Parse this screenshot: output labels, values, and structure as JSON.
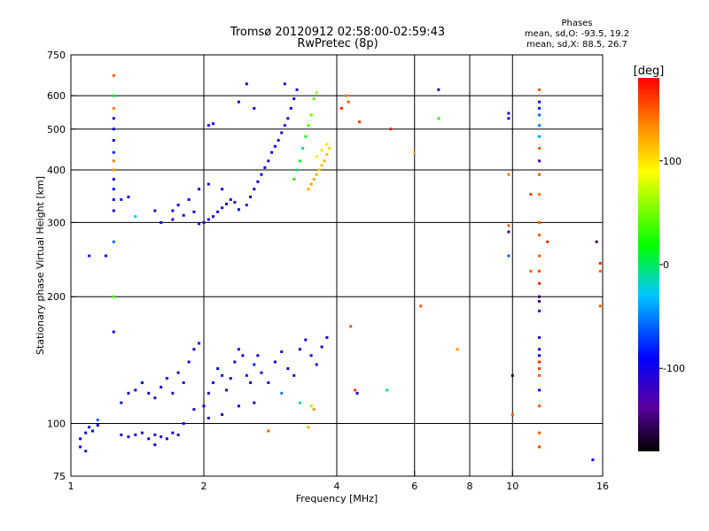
{
  "chart_data": {
    "type": "scatter",
    "title": "Tromsø 20120912 02:58:00-02:59:43",
    "subtitle": "RwPretec (8p)",
    "info": {
      "heading": "Phases",
      "line1": "mean, sd,O: -93.5, 19.2",
      "line2": "mean, sd,X:  88.5, 26.7"
    },
    "xlabel": "Frequency [MHz]",
    "ylabel": "Stationary phase Virtual Height [km]",
    "xscale": "log",
    "yscale": "log",
    "xlim": [
      1,
      16
    ],
    "ylim": [
      75,
      750
    ],
    "xticks": [
      1,
      2,
      4,
      6,
      8,
      10,
      16
    ],
    "xtick_labels": [
      "1",
      "2",
      "4",
      "6",
      "8",
      "10",
      "16"
    ],
    "xgrid": [
      2,
      4,
      6,
      8,
      10
    ],
    "yticks": [
      75,
      100,
      200,
      300,
      400,
      500,
      600,
      750
    ],
    "ytick_labels": [
      "75",
      "100",
      "200",
      "300",
      "400",
      "500",
      "600",
      "750"
    ],
    "ygrid": [
      100,
      200,
      300,
      400,
      500,
      600
    ],
    "colorbar": {
      "label": "[deg]",
      "range": [
        -180,
        180
      ],
      "ticks": [
        100,
        0,
        -100
      ],
      "tick_labels": [
        "100",
        "0",
        "-100"
      ]
    },
    "series": [
      {
        "points": [
          [
            1.05,
            92,
            -90
          ],
          [
            1.08,
            95,
            -100
          ],
          [
            1.1,
            98,
            -80
          ],
          [
            1.12,
            96,
            -100
          ],
          [
            1.15,
            99,
            -95
          ],
          [
            1.3,
            94,
            -100
          ],
          [
            1.35,
            93,
            -110
          ],
          [
            1.4,
            94,
            -100
          ],
          [
            1.45,
            95,
            -105
          ],
          [
            1.5,
            92,
            -100
          ],
          [
            1.55,
            94,
            -95
          ],
          [
            1.6,
            93,
            -110
          ],
          [
            1.65,
            92,
            -100
          ],
          [
            1.7,
            95,
            -90
          ],
          [
            1.75,
            94,
            -100
          ],
          [
            1.55,
            89,
            -100
          ],
          [
            1.3,
            112,
            -100
          ],
          [
            1.35,
            118,
            -110
          ],
          [
            1.4,
            120,
            -100
          ],
          [
            1.45,
            125,
            -95
          ],
          [
            1.5,
            118,
            -100
          ],
          [
            1.55,
            115,
            -105
          ],
          [
            1.6,
            122,
            -100
          ],
          [
            1.65,
            128,
            -90
          ],
          [
            1.7,
            118,
            -100
          ],
          [
            1.75,
            132,
            -100
          ],
          [
            1.8,
            125,
            -110
          ],
          [
            1.85,
            140,
            -100
          ],
          [
            1.9,
            150,
            -95
          ],
          [
            1.95,
            155,
            -100
          ],
          [
            2.0,
            110,
            -100
          ],
          [
            2.05,
            118,
            -105
          ],
          [
            2.1,
            125,
            -100
          ],
          [
            2.15,
            135,
            -90
          ],
          [
            2.2,
            130,
            -100
          ],
          [
            2.25,
            120,
            -110
          ],
          [
            2.3,
            128,
            -100
          ],
          [
            2.35,
            140,
            -100
          ],
          [
            2.4,
            150,
            -95
          ],
          [
            2.45,
            145,
            -100
          ],
          [
            2.5,
            130,
            -105
          ],
          [
            2.55,
            125,
            -100
          ],
          [
            2.6,
            138,
            -80
          ],
          [
            2.65,
            145,
            -100
          ],
          [
            2.7,
            132,
            -110
          ],
          [
            2.8,
            125,
            -100
          ],
          [
            2.9,
            140,
            -95
          ],
          [
            3.0,
            148,
            -100
          ],
          [
            3.1,
            135,
            -100
          ],
          [
            3.2,
            130,
            -110
          ],
          [
            3.3,
            150,
            -100
          ],
          [
            3.4,
            158,
            -95
          ],
          [
            3.5,
            145,
            -100
          ],
          [
            3.6,
            138,
            -105
          ],
          [
            3.7,
            152,
            -100
          ],
          [
            3.8,
            160,
            -90
          ],
          [
            1.8,
            100,
            -100
          ],
          [
            2.05,
            103,
            -100
          ],
          [
            1.9,
            108,
            -110
          ],
          [
            2.2,
            105,
            -100
          ],
          [
            2.4,
            110,
            -95
          ],
          [
            2.6,
            112,
            -100
          ],
          [
            3.0,
            118,
            -50
          ],
          [
            3.3,
            112,
            -20
          ],
          [
            3.5,
            110,
            60
          ],
          [
            3.55,
            108,
            130
          ],
          [
            3.45,
            98,
            120
          ],
          [
            2.8,
            96,
            150
          ],
          [
            1.95,
            298,
            -100
          ],
          [
            2.0,
            300,
            -110
          ],
          [
            2.05,
            305,
            -100
          ],
          [
            2.1,
            310,
            -95
          ],
          [
            2.15,
            318,
            -100
          ],
          [
            2.2,
            325,
            -105
          ],
          [
            2.25,
            332,
            -100
          ],
          [
            2.3,
            340,
            -110
          ],
          [
            2.35,
            335,
            -100
          ],
          [
            2.4,
            322,
            -95
          ],
          [
            2.5,
            330,
            -100
          ],
          [
            2.55,
            345,
            -100
          ],
          [
            2.6,
            360,
            -105
          ],
          [
            2.65,
            375,
            -100
          ],
          [
            2.7,
            390,
            -90
          ],
          [
            2.75,
            405,
            -100
          ],
          [
            2.8,
            420,
            -110
          ],
          [
            2.85,
            440,
            -100
          ],
          [
            2.9,
            455,
            -95
          ],
          [
            2.95,
            470,
            -100
          ],
          [
            3.0,
            490,
            -100
          ],
          [
            3.05,
            510,
            -105
          ],
          [
            3.1,
            530,
            -100
          ],
          [
            3.15,
            560,
            -90
          ],
          [
            3.2,
            590,
            -100
          ],
          [
            3.25,
            620,
            -110
          ],
          [
            3.05,
            640,
            -100
          ],
          [
            2.5,
            640,
            -100
          ],
          [
            2.4,
            580,
            -95
          ],
          [
            2.6,
            560,
            -100
          ],
          [
            1.6,
            300,
            -100
          ],
          [
            1.7,
            305,
            -110
          ],
          [
            1.8,
            312,
            -100
          ],
          [
            1.9,
            318,
            -95
          ],
          [
            1.75,
            330,
            -100
          ],
          [
            1.85,
            340,
            -105
          ],
          [
            1.95,
            360,
            -100
          ],
          [
            2.05,
            370,
            -110
          ],
          [
            2.2,
            360,
            -100
          ],
          [
            1.7,
            320,
            -100
          ],
          [
            2.05,
            510,
            -100
          ],
          [
            2.1,
            515,
            -95
          ],
          [
            1.55,
            320,
            -110
          ],
          [
            3.2,
            380,
            30
          ],
          [
            3.25,
            400,
            0
          ],
          [
            3.3,
            420,
            10
          ],
          [
            3.35,
            450,
            -20
          ],
          [
            3.4,
            480,
            20
          ],
          [
            3.45,
            510,
            40
          ],
          [
            3.5,
            540,
            50
          ],
          [
            3.55,
            590,
            40
          ],
          [
            3.6,
            610,
            60
          ],
          [
            3.45,
            360,
            120
          ],
          [
            3.5,
            370,
            125
          ],
          [
            3.55,
            380,
            120
          ],
          [
            3.6,
            390,
            118
          ],
          [
            3.65,
            400,
            110
          ],
          [
            3.7,
            410,
            115
          ],
          [
            3.75,
            420,
            120
          ],
          [
            3.8,
            435,
            110
          ],
          [
            3.85,
            450,
            105
          ],
          [
            3.8,
            460,
            100
          ],
          [
            3.7,
            445,
            100
          ],
          [
            3.6,
            430,
            100
          ],
          [
            1.25,
            670,
            150
          ],
          [
            1.25,
            600,
            10
          ],
          [
            1.25,
            560,
            140
          ],
          [
            1.25,
            530,
            -110
          ],
          [
            1.25,
            500,
            -100
          ],
          [
            1.25,
            470,
            -90
          ],
          [
            1.25,
            440,
            -80
          ],
          [
            1.25,
            420,
            140
          ],
          [
            1.25,
            400,
            130
          ],
          [
            1.25,
            380,
            -100
          ],
          [
            1.25,
            360,
            -90
          ],
          [
            1.25,
            340,
            -100
          ],
          [
            1.3,
            340,
            -80
          ],
          [
            1.35,
            345,
            -100
          ],
          [
            1.4,
            310,
            -20
          ],
          [
            1.25,
            320,
            -100
          ],
          [
            1.25,
            270,
            -60
          ],
          [
            1.2,
            250,
            -100
          ],
          [
            1.1,
            250,
            -80
          ],
          [
            1.25,
            200,
            40
          ],
          [
            1.25,
            165,
            -100
          ],
          [
            1.05,
            88,
            -100
          ],
          [
            1.08,
            86,
            -80
          ],
          [
            1.15,
            102,
            -60
          ],
          [
            4.2,
            600,
            140
          ],
          [
            4.25,
            580,
            150
          ],
          [
            4.1,
            560,
            170
          ],
          [
            4.5,
            520,
            160
          ],
          [
            5.3,
            500,
            175
          ],
          [
            4.3,
            170,
            150
          ],
          [
            4.4,
            120,
            160
          ],
          [
            4.45,
            118,
            -100
          ],
          [
            6.2,
            190,
            150
          ],
          [
            6.0,
            440,
            120
          ],
          [
            6.8,
            620,
            -110
          ],
          [
            6.8,
            530,
            30
          ],
          [
            5.2,
            120,
            -20
          ],
          [
            7.5,
            150,
            130
          ],
          [
            9.8,
            545,
            -100
          ],
          [
            9.8,
            530,
            -100
          ],
          [
            9.8,
            390,
            140
          ],
          [
            9.8,
            295,
            150
          ],
          [
            9.8,
            285,
            -150
          ],
          [
            9.8,
            250,
            -60
          ],
          [
            10.0,
            130,
            -160
          ],
          [
            10.0,
            105,
            150
          ],
          [
            11.5,
            620,
            150
          ],
          [
            11.5,
            580,
            -100
          ],
          [
            11.5,
            560,
            -80
          ],
          [
            11.5,
            540,
            -60
          ],
          [
            11.5,
            510,
            -50
          ],
          [
            11.5,
            480,
            -40
          ],
          [
            11.5,
            450,
            150
          ],
          [
            11.5,
            420,
            -120
          ],
          [
            11.5,
            390,
            150
          ],
          [
            11.5,
            350,
            140
          ],
          [
            11.5,
            300,
            150
          ],
          [
            11.5,
            280,
            150
          ],
          [
            11.5,
            250,
            150
          ],
          [
            11.5,
            230,
            160
          ],
          [
            11.5,
            215,
            170
          ],
          [
            11.5,
            200,
            -160
          ],
          [
            11.5,
            195,
            -150
          ],
          [
            11.5,
            185,
            -120
          ],
          [
            11.5,
            160,
            -110
          ],
          [
            11.5,
            150,
            -100
          ],
          [
            11.5,
            145,
            -90
          ],
          [
            11.5,
            140,
            170
          ],
          [
            11.5,
            135,
            160
          ],
          [
            11.5,
            130,
            150
          ],
          [
            11.5,
            120,
            -110
          ],
          [
            11.5,
            110,
            150
          ],
          [
            11.5,
            95,
            150
          ],
          [
            11.5,
            88,
            160
          ],
          [
            11.0,
            350,
            160
          ],
          [
            11.0,
            230,
            150
          ],
          [
            12.0,
            270,
            170
          ],
          [
            15.5,
            270,
            -150
          ],
          [
            15.8,
            240,
            170
          ],
          [
            15.8,
            230,
            150
          ],
          [
            15.8,
            190,
            150
          ],
          [
            15.2,
            82,
            -100
          ]
        ]
      }
    ]
  }
}
